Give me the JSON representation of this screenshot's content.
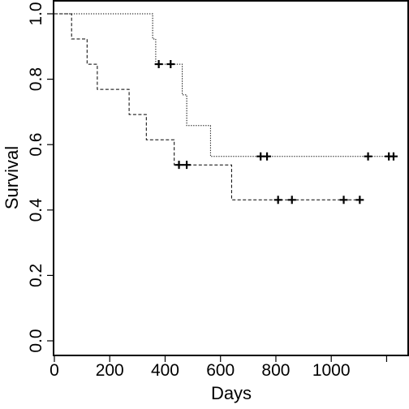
{
  "chart_data": {
    "type": "line",
    "subtype": "kaplan-meier step curves with censor marks",
    "xlabel": "Days",
    "ylabel": "Survival",
    "xlim": [
      0,
      1200
    ],
    "ylim": [
      0,
      1
    ],
    "x_ticks": [
      0,
      200,
      400,
      600,
      800,
      1000,
      1200
    ],
    "x_tick_labels": [
      "0",
      "200",
      "400",
      "600",
      "800",
      "1000",
      ""
    ],
    "y_ticks": [
      0.0,
      0.2,
      0.4,
      0.6,
      0.8,
      1.0
    ],
    "y_tick_labels": [
      "0.0",
      "0.2",
      "0.4",
      "0.6",
      "0.8",
      "1.0"
    ],
    "grid": false,
    "legend": "none",
    "series": [
      {
        "line_style": "dotted",
        "steps": [
          [
            0,
            1.0
          ],
          [
            355,
            1.0
          ],
          [
            355,
            0.923
          ],
          [
            366,
            0.923
          ],
          [
            366,
            0.846
          ],
          [
            462,
            0.846
          ],
          [
            462,
            0.752
          ],
          [
            478,
            0.752
          ],
          [
            478,
            0.658
          ],
          [
            564,
            0.658
          ],
          [
            564,
            0.564
          ],
          [
            1215,
            0.564
          ]
        ],
        "censored": [
          [
            377,
            0.846
          ],
          [
            420,
            0.846
          ],
          [
            745,
            0.564
          ],
          [
            768,
            0.564
          ],
          [
            1133,
            0.564
          ],
          [
            1208,
            0.564
          ],
          [
            1225,
            0.564
          ]
        ]
      },
      {
        "line_style": "dashed",
        "steps": [
          [
            0,
            1.0
          ],
          [
            62,
            1.0
          ],
          [
            62,
            0.923
          ],
          [
            118,
            0.923
          ],
          [
            118,
            0.846
          ],
          [
            155,
            0.846
          ],
          [
            155,
            0.769
          ],
          [
            270,
            0.769
          ],
          [
            270,
            0.692
          ],
          [
            332,
            0.692
          ],
          [
            332,
            0.615
          ],
          [
            433,
            0.615
          ],
          [
            433,
            0.538
          ],
          [
            640,
            0.538
          ],
          [
            640,
            0.431
          ],
          [
            1110,
            0.431
          ]
        ],
        "censored": [
          [
            450,
            0.538
          ],
          [
            478,
            0.538
          ],
          [
            808,
            0.431
          ],
          [
            858,
            0.431
          ],
          [
            1045,
            0.431
          ],
          [
            1103,
            0.431
          ]
        ]
      }
    ]
  }
}
